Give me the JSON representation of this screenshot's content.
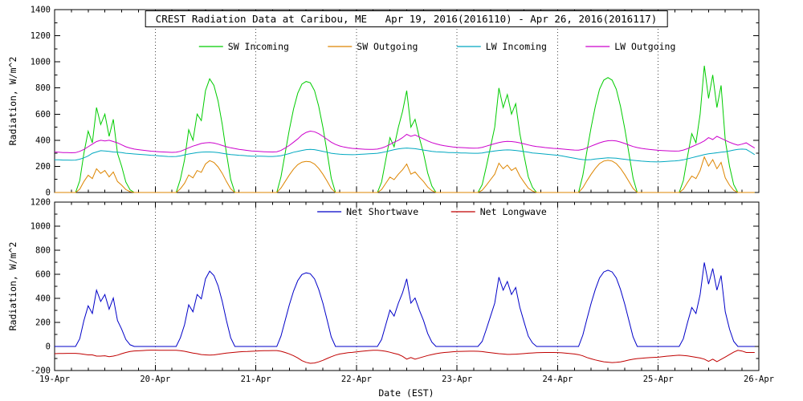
{
  "figure": {
    "background": "#ffffff",
    "axis_color": "#000000",
    "gridline_style": "vertical dotted lines at each day boundary"
  },
  "x_axis": {
    "label": "Date (EST)",
    "tick_labels": [
      "19-Apr",
      "20-Apr",
      "21-Apr",
      "22-Apr",
      "23-Apr",
      "24-Apr",
      "25-Apr",
      "26-Apr"
    ],
    "range_days": [
      0,
      7
    ],
    "minor_ticks_per_day": 5
  },
  "chart_data": [
    {
      "type": "line",
      "title": "CREST Radiation Data at Caribou, ME   Apr 19, 2016(2016110) - Apr 26, 2016(2016117)",
      "ylabel": "Radiation, W/m^2",
      "ylim": [
        0,
        1400
      ],
      "ytick_step": 200,
      "x_unit": "hours since Apr 19 2016 00:00 EST",
      "x_range_hours": [
        0,
        168
      ],
      "grid": "vertical-dotted-daily",
      "legend_position": "inside-top",
      "series": [
        {
          "name": "SW Incoming",
          "color": "#00CC00",
          "values": [
            0,
            0,
            0,
            0,
            0,
            0,
            90,
            300,
            470,
            380,
            650,
            520,
            600,
            430,
            560,
            300,
            200,
            80,
            20,
            0,
            0,
            0,
            0,
            0,
            0,
            0,
            0,
            0,
            0,
            0,
            100,
            250,
            480,
            400,
            600,
            550,
            780,
            870,
            820,
            700,
            520,
            300,
            100,
            0,
            0,
            0,
            0,
            0,
            0,
            0,
            0,
            0,
            0,
            0,
            120,
            300,
            480,
            640,
            760,
            830,
            850,
            840,
            780,
            660,
            500,
            310,
            110,
            0,
            0,
            0,
            0,
            0,
            0,
            0,
            0,
            0,
            0,
            0,
            80,
            250,
            420,
            350,
            500,
            620,
            780,
            500,
            560,
            420,
            300,
            150,
            50,
            0,
            0,
            0,
            0,
            0,
            0,
            0,
            0,
            0,
            0,
            0,
            60,
            200,
            350,
            500,
            800,
            650,
            750,
            600,
            680,
            450,
            280,
            120,
            40,
            0,
            0,
            0,
            0,
            0,
            0,
            0,
            0,
            0,
            0,
            0,
            130,
            320,
            500,
            660,
            790,
            860,
            880,
            860,
            790,
            660,
            490,
            300,
            110,
            0,
            0,
            0,
            0,
            0,
            0,
            0,
            0,
            0,
            0,
            0,
            90,
            280,
            450,
            380,
            600,
            970,
            720,
            900,
            650,
            820,
            400,
            200,
            60,
            0,
            0,
            0,
            0,
            0
          ]
        },
        {
          "name": "SW Outgoing",
          "color": "#DD8500",
          "values": [
            0,
            0,
            0,
            0,
            0,
            0,
            25,
            84,
            132,
            106,
            182,
            146,
            168,
            120,
            157,
            84,
            56,
            22,
            6,
            0,
            0,
            0,
            0,
            0,
            0,
            0,
            0,
            0,
            0,
            0,
            28,
            70,
            134,
            112,
            168,
            154,
            218,
            244,
            230,
            196,
            146,
            84,
            28,
            0,
            0,
            0,
            0,
            0,
            0,
            0,
            0,
            0,
            0,
            0,
            34,
            84,
            134,
            179,
            213,
            232,
            238,
            235,
            218,
            185,
            140,
            87,
            31,
            0,
            0,
            0,
            0,
            0,
            0,
            0,
            0,
            0,
            0,
            0,
            22,
            70,
            118,
            98,
            140,
            174,
            218,
            140,
            157,
            118,
            84,
            42,
            14,
            0,
            0,
            0,
            0,
            0,
            0,
            0,
            0,
            0,
            0,
            0,
            17,
            56,
            98,
            140,
            224,
            182,
            210,
            168,
            190,
            126,
            78,
            34,
            11,
            0,
            0,
            0,
            0,
            0,
            0,
            0,
            0,
            0,
            0,
            0,
            36,
            90,
            140,
            185,
            221,
            241,
            246,
            241,
            221,
            185,
            137,
            84,
            31,
            0,
            0,
            0,
            0,
            0,
            0,
            0,
            0,
            0,
            0,
            0,
            25,
            78,
            126,
            106,
            168,
            272,
            202,
            252,
            182,
            230,
            112,
            56,
            17,
            0,
            0,
            0,
            0,
            0
          ]
        },
        {
          "name": "LW Incoming",
          "color": "#00A8C0",
          "values": [
            250,
            250,
            248,
            248,
            247,
            248,
            255,
            265,
            280,
            300,
            310,
            320,
            318,
            315,
            310,
            308,
            305,
            300,
            298,
            295,
            292,
            290,
            288,
            285,
            283,
            280,
            278,
            276,
            275,
            276,
            280,
            288,
            295,
            300,
            305,
            308,
            310,
            310,
            308,
            305,
            300,
            295,
            290,
            288,
            285,
            283,
            280,
            278,
            278,
            278,
            277,
            276,
            276,
            278,
            282,
            290,
            298,
            308,
            315,
            322,
            328,
            330,
            328,
            322,
            315,
            308,
            300,
            296,
            293,
            291,
            290,
            289,
            290,
            292,
            294,
            296,
            298,
            300,
            305,
            312,
            320,
            328,
            334,
            338,
            340,
            338,
            335,
            330,
            325,
            320,
            315,
            312,
            310,
            308,
            306,
            305,
            304,
            303,
            302,
            301,
            300,
            300,
            303,
            308,
            313,
            318,
            322,
            325,
            326,
            325,
            322,
            318,
            313,
            308,
            303,
            300,
            297,
            294,
            291,
            288,
            285,
            280,
            274,
            268,
            262,
            256,
            252,
            250,
            252,
            256,
            260,
            263,
            265,
            264,
            262,
            258,
            254,
            250,
            246,
            243,
            240,
            238,
            236,
            235,
            234,
            236,
            238,
            240,
            242,
            245,
            250,
            258,
            266,
            274,
            282,
            290,
            296,
            300,
            304,
            308,
            312,
            318,
            325,
            330,
            332,
            330,
            310,
            290
          ]
        },
        {
          "name": "LW Outgoing",
          "color": "#CC00CC",
          "values": [
            310,
            308,
            306,
            305,
            304,
            305,
            315,
            330,
            350,
            370,
            390,
            400,
            395,
            400,
            390,
            380,
            365,
            350,
            340,
            332,
            328,
            324,
            320,
            316,
            314,
            312,
            310,
            308,
            307,
            308,
            315,
            328,
            342,
            355,
            365,
            375,
            380,
            382,
            378,
            370,
            360,
            350,
            342,
            336,
            330,
            326,
            322,
            318,
            316,
            314,
            312,
            311,
            310,
            312,
            322,
            340,
            360,
            385,
            410,
            440,
            460,
            470,
            465,
            450,
            430,
            408,
            385,
            368,
            356,
            348,
            342,
            338,
            335,
            333,
            331,
            330,
            330,
            332,
            340,
            352,
            368,
            385,
            400,
            420,
            445,
            430,
            440,
            425,
            410,
            395,
            382,
            372,
            364,
            358,
            353,
            349,
            346,
            344,
            342,
            340,
            339,
            340,
            346,
            355,
            365,
            374,
            382,
            388,
            392,
            390,
            386,
            380,
            372,
            364,
            357,
            352,
            348,
            344,
            341,
            338,
            336,
            333,
            330,
            327,
            325,
            324,
            330,
            342,
            355,
            368,
            380,
            390,
            396,
            398,
            394,
            386,
            375,
            363,
            352,
            344,
            338,
            333,
            329,
            326,
            323,
            321,
            319,
            318,
            317,
            318,
            325,
            336,
            350,
            364,
            378,
            395,
            420,
            405,
            430,
            415,
            400,
            385,
            372,
            362,
            370,
            380,
            360,
            340
          ]
        }
      ]
    },
    {
      "type": "line",
      "ylabel": "Radiation, W/m^2",
      "ylim": [
        -200,
        1200
      ],
      "ytick_step": 200,
      "x_unit": "hours since Apr 19 2016 00:00 EST",
      "x_range_hours": [
        0,
        168
      ],
      "grid": "vertical-dotted-daily",
      "legend_position": "inside-top",
      "series": [
        {
          "name": "Net Shortwave",
          "color": "#0000C8",
          "values": [
            0,
            0,
            0,
            0,
            0,
            0,
            65,
            216,
            338,
            274,
            468,
            374,
            432,
            310,
            403,
            216,
            144,
            58,
            14,
            0,
            0,
            0,
            0,
            0,
            0,
            0,
            0,
            0,
            0,
            0,
            72,
            180,
            346,
            288,
            432,
            396,
            562,
            626,
            590,
            504,
            374,
            216,
            72,
            0,
            0,
            0,
            0,
            0,
            0,
            0,
            0,
            0,
            0,
            0,
            86,
            216,
            346,
            461,
            547,
            598,
            612,
            605,
            562,
            475,
            360,
            223,
            79,
            0,
            0,
            0,
            0,
            0,
            0,
            0,
            0,
            0,
            0,
            0,
            58,
            180,
            302,
            252,
            360,
            446,
            562,
            360,
            403,
            302,
            216,
            108,
            36,
            0,
            0,
            0,
            0,
            0,
            0,
            0,
            0,
            0,
            0,
            0,
            43,
            144,
            252,
            360,
            576,
            468,
            540,
            432,
            490,
            324,
            202,
            86,
            29,
            0,
            0,
            0,
            0,
            0,
            0,
            0,
            0,
            0,
            0,
            0,
            94,
            230,
            360,
            475,
            569,
            619,
            634,
            619,
            569,
            475,
            353,
            216,
            79,
            0,
            0,
            0,
            0,
            0,
            0,
            0,
            0,
            0,
            0,
            0,
            65,
            202,
            324,
            274,
            432,
            698,
            518,
            648,
            468,
            590,
            288,
            144,
            43,
            0,
            0,
            0,
            0,
            0
          ]
        },
        {
          "name": "Net Longwave",
          "color": "#C00000",
          "values": [
            -60,
            -58,
            -58,
            -57,
            -57,
            -57,
            -60,
            -65,
            -70,
            -70,
            -80,
            -80,
            -77,
            -85,
            -80,
            -72,
            -60,
            -50,
            -42,
            -37,
            -36,
            -34,
            -32,
            -31,
            -31,
            -32,
            -32,
            -32,
            -32,
            -32,
            -35,
            -40,
            -47,
            -55,
            -60,
            -67,
            -70,
            -72,
            -70,
            -65,
            -60,
            -55,
            -52,
            -48,
            -45,
            -43,
            -42,
            -40,
            -38,
            -36,
            -35,
            -35,
            -34,
            -34,
            -40,
            -50,
            -62,
            -77,
            -95,
            -118,
            -132,
            -140,
            -137,
            -128,
            -115,
            -100,
            -85,
            -72,
            -63,
            -57,
            -52,
            -49,
            -45,
            -41,
            -37,
            -34,
            -32,
            -32,
            -35,
            -40,
            -48,
            -57,
            -66,
            -82,
            -105,
            -92,
            -105,
            -95,
            -85,
            -75,
            -67,
            -60,
            -54,
            -50,
            -47,
            -44,
            -42,
            -41,
            -40,
            -39,
            -39,
            -40,
            -43,
            -47,
            -52,
            -56,
            -60,
            -63,
            -66,
            -65,
            -64,
            -62,
            -59,
            -56,
            -54,
            -52,
            -51,
            -50,
            -50,
            -50,
            -51,
            -53,
            -56,
            -59,
            -63,
            -68,
            -78,
            -92,
            -103,
            -112,
            -120,
            -127,
            -131,
            -134,
            -132,
            -128,
            -121,
            -113,
            -106,
            -101,
            -98,
            -95,
            -93,
            -91,
            -89,
            -85,
            -81,
            -78,
            -75,
            -73,
            -75,
            -78,
            -84,
            -90,
            -96,
            -105,
            -124,
            -105,
            -126,
            -107,
            -88,
            -67,
            -47,
            -32,
            -38,
            -50,
            -50,
            -50
          ]
        }
      ]
    }
  ]
}
